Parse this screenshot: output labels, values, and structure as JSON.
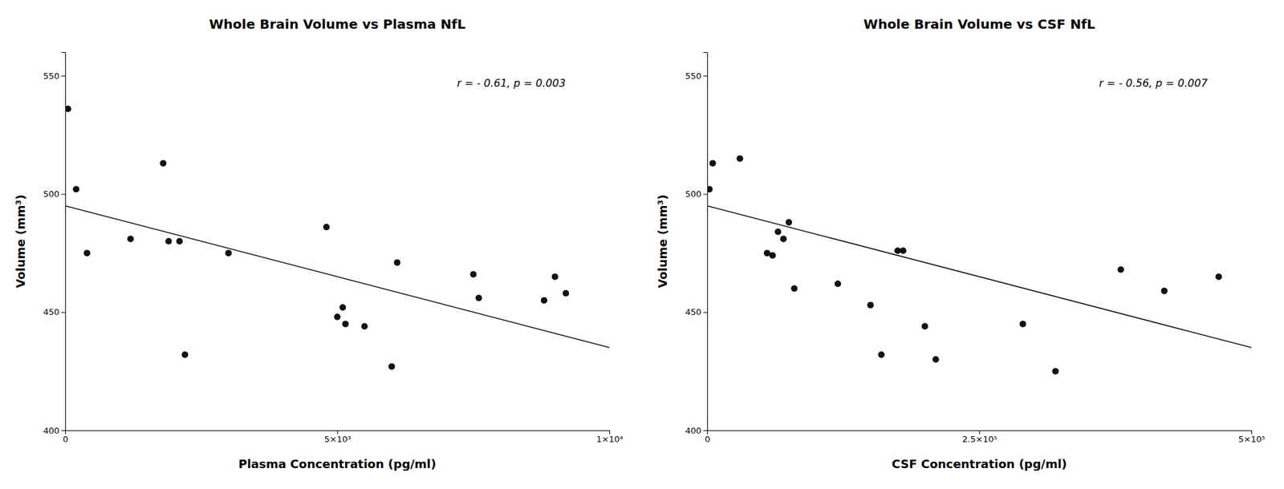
{
  "chart_data": [
    {
      "type": "scatter",
      "title": "Whole Brain Volume vs Plasma NfL",
      "xlabel": "Plasma Concentration (pg/ml)",
      "ylabel": "Volume (mm³)",
      "annotation": "r = - 0.61, p = 0.003",
      "series": [
        {
          "type": "scatter",
          "color": "#111111",
          "x": [
            50,
            200,
            400,
            1200,
            1800,
            1900,
            2100,
            2200,
            3000,
            4800,
            5000,
            5100,
            5150,
            5500,
            6000,
            6100,
            7500,
            7600,
            8800,
            9000,
            9200
          ],
          "values": [
            536,
            502,
            475,
            481,
            513,
            480,
            480,
            432,
            475,
            486,
            448,
            452,
            445,
            444,
            427,
            471,
            466,
            456,
            455,
            465,
            458
          ]
        },
        {
          "type": "line",
          "color": "#111111",
          "x": [
            0,
            10000
          ],
          "values": [
            495,
            435
          ]
        }
      ],
      "xlim": [
        0,
        10000
      ],
      "ylim": [
        400,
        560
      ],
      "xticks": [
        0,
        {
          "value": 5000,
          "label": "5×10³"
        },
        {
          "value": 10000,
          "label": "1×10⁴"
        }
      ],
      "yticks": [
        400,
        450,
        500,
        550
      ],
      "grid": false
    },
    {
      "type": "scatter",
      "title": "Whole Brain Volume vs CSF NfL",
      "xlabel": "CSF Concentration (pg/ml)",
      "ylabel": "Volume (mm³)",
      "annotation": "r = - 0.56, p = 0.007",
      "series": [
        {
          "type": "scatter",
          "color": "#111111",
          "x": [
            2000,
            5000,
            30000,
            55000,
            60000,
            65000,
            70000,
            75000,
            80000,
            120000,
            150000,
            160000,
            175000,
            180000,
            200000,
            210000,
            290000,
            320000,
            380000,
            420000,
            470000
          ],
          "values": [
            502,
            513,
            515,
            475,
            474,
            484,
            481,
            488,
            460,
            462,
            453,
            432,
            476,
            476,
            444,
            430,
            445,
            425,
            468,
            459,
            465
          ]
        },
        {
          "type": "line",
          "color": "#111111",
          "x": [
            0,
            500000
          ],
          "values": [
            495,
            435
          ]
        }
      ],
      "xlim": [
        0,
        500000
      ],
      "ylim": [
        400,
        560
      ],
      "xticks": [
        0,
        {
          "value": 250000,
          "label": "2.5×10⁵"
        },
        {
          "value": 500000,
          "label": "5×10⁵"
        }
      ],
      "yticks": [
        400,
        450,
        500,
        550
      ],
      "grid": false
    }
  ]
}
